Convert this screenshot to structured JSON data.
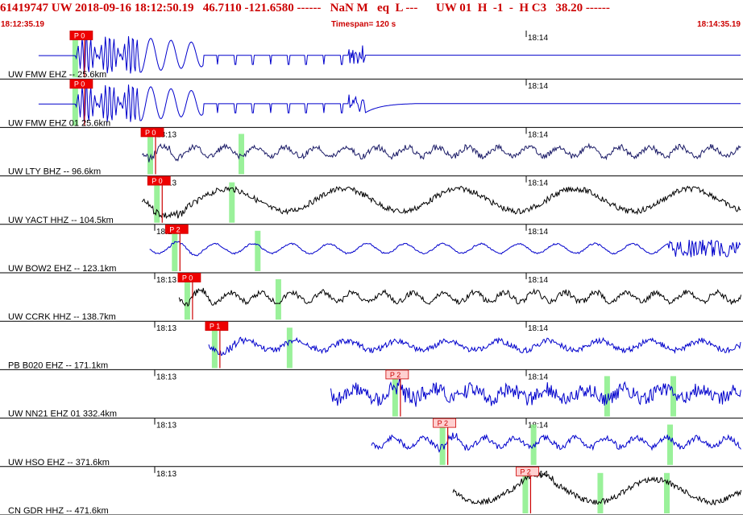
{
  "header": {
    "title": "61419747 UW 2018-09-16 18:12:50.19   46.7110 -121.6580 ------   NaN M   eq  L ---      UW 01  H  -1  -  H C3   38.20 ------",
    "start_time": "18:12:35.19",
    "timespan": "Timespan= 120 s",
    "end_time": "18:14:35.19"
  },
  "minute_marks": [
    "18:13",
    "18:14"
  ],
  "traces": [
    {
      "label": "UW FMW EHZ -- 25.6km",
      "color": "#0000cc",
      "pick_label": "P 0",
      "pick_solid": true,
      "start": 0.05,
      "pick": 0.099
    },
    {
      "label": "UW FMW EHZ 01 25.6km",
      "color": "#0000cc",
      "pick_label": "P 0",
      "pick_solid": true,
      "start": 0.05,
      "pick": 0.099
    },
    {
      "label": "UW LTY BHZ -- 96.6km",
      "color": "#1a1a66",
      "pick_label": "P 0",
      "pick_solid": true,
      "start": 0.19,
      "pick": 0.195
    },
    {
      "label": "UW YACT HHZ -- 104.5km",
      "color": "#000000",
      "pick_label": "P 0",
      "pick_solid": true,
      "start": 0.19,
      "pick": 0.204
    },
    {
      "label": "UW BOW2 EHZ -- 123.1km",
      "color": "#0000cc",
      "pick_label": "P 2",
      "pick_solid": true,
      "start": 0.2,
      "pick": 0.228
    },
    {
      "label": "UW CCRK HHZ -- 138.7km",
      "color": "#000000",
      "pick_label": "P 0",
      "pick_solid": true,
      "start": 0.24,
      "pick": 0.245
    },
    {
      "label": "PB B020 EHZ -- 171.1km",
      "color": "#0000cc",
      "pick_label": "P 1",
      "pick_solid": true,
      "start": 0.28,
      "pick": 0.282
    },
    {
      "label": "UW NN21 EHZ 01 332.4km",
      "color": "#0000cc",
      "pick_label": "P 2",
      "pick_solid": false,
      "start": 0.445,
      "pick": 0.526
    },
    {
      "label": "UW HSO EHZ -- 371.6km",
      "color": "#0000cc",
      "pick_label": "P 2",
      "pick_solid": false,
      "start": 0.5,
      "pick": 0.59
    },
    {
      "label": "CN GDR HHZ -- 471.6km",
      "color": "#000000",
      "pick_label": "P 2",
      "pick_solid": false,
      "start": 0.61,
      "pick": 0.702
    }
  ]
}
